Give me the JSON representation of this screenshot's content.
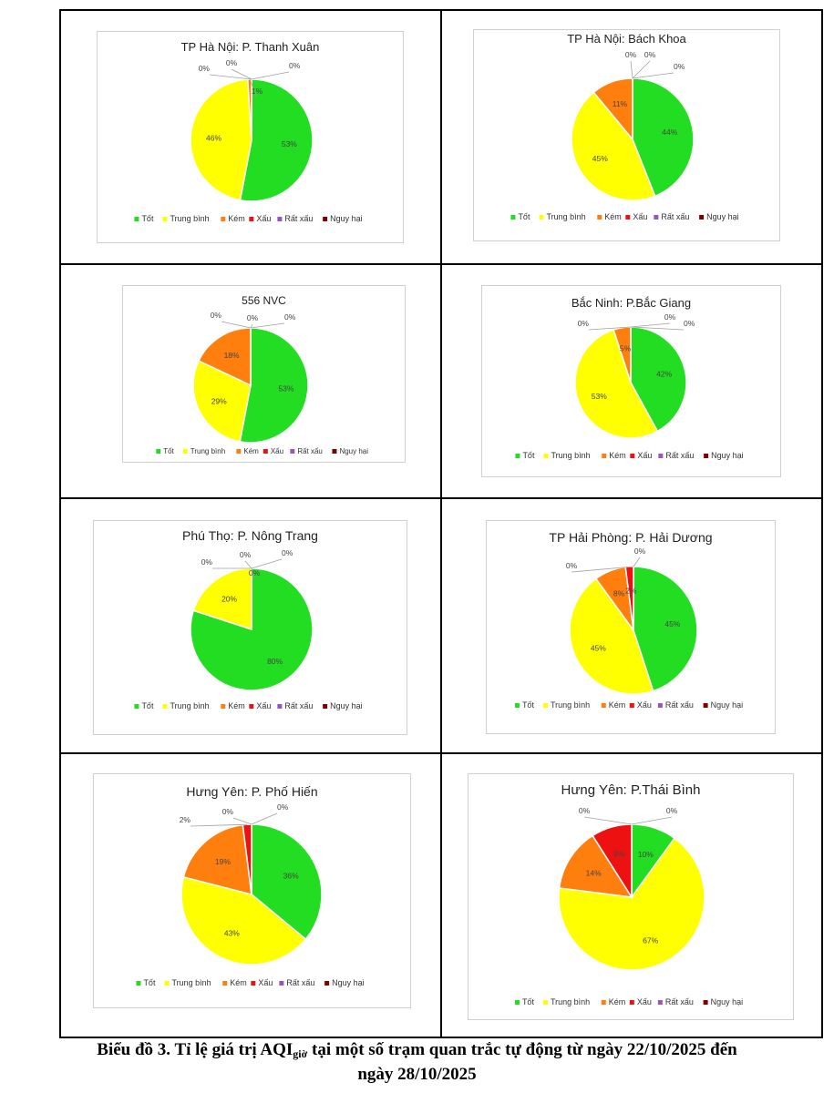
{
  "legend_labels": [
    "Tốt",
    "Trung bình",
    "Kém",
    "Xấu",
    "Rất xấu",
    "Nguy hại"
  ],
  "colors": [
    "#22dd22",
    "#ffff00",
    "#ff7f0e",
    "#ee1111",
    "#9955bb",
    "#800000"
  ],
  "caption": {
    "prefix": "Biểu đồ 3.  Tỉ lệ giá trị AQI",
    "sub": "giờ",
    "suffix": " tại một số trạm quan trắc tự động từ ngày 22/10/2025 đến",
    "line2": "ngày 28/10/2025"
  },
  "chart_data": [
    {
      "type": "pie",
      "title": "TP Hà Nội: P. Thanh Xuân",
      "categories": [
        "Tốt",
        "Trung bình",
        "Kém",
        "Xấu",
        "Rất xấu",
        "Nguy hại"
      ],
      "values": [
        53,
        46,
        1,
        0,
        0,
        0
      ],
      "labels": [
        "53%",
        "46%",
        "1%",
        "0%",
        "0%",
        "0%"
      ]
    },
    {
      "type": "pie",
      "title": "TP Hà Nội: Bách Khoa",
      "categories": [
        "Tốt",
        "Trung bình",
        "Kém",
        "Xấu",
        "Rất xấu",
        "Nguy hại"
      ],
      "values": [
        44,
        45,
        11,
        0,
        0,
        0
      ],
      "labels": [
        "44%",
        "45%",
        "11%",
        "0%",
        "0%",
        "0%"
      ]
    },
    {
      "type": "pie",
      "title": "556 NVC",
      "categories": [
        "Tốt",
        "Trung bình",
        "Kém",
        "Xấu",
        "Rất xấu",
        "Nguy hại"
      ],
      "values": [
        53,
        29,
        18,
        0,
        0,
        0
      ],
      "labels": [
        "53%",
        "29%",
        "18%",
        "0%",
        "0%",
        "0%"
      ]
    },
    {
      "type": "pie",
      "title": "Bắc Ninh: P.Bắc Giang",
      "categories": [
        "Tốt",
        "Trung bình",
        "Kém",
        "Xấu",
        "Rất xấu",
        "Nguy hại"
      ],
      "values": [
        42,
        53,
        5,
        0,
        0,
        0
      ],
      "labels": [
        "42%",
        "53%",
        "5%",
        "0%",
        "0%",
        "0%"
      ]
    },
    {
      "type": "pie",
      "title": "Phú Thọ: P. Nông Trang",
      "categories": [
        "Tốt",
        "Trung bình",
        "Kém",
        "Xấu",
        "Rất xấu",
        "Nguy hại"
      ],
      "values": [
        80,
        20,
        0,
        0,
        0,
        0
      ],
      "labels": [
        "80%",
        "20%",
        "0%",
        "0%",
        "0%",
        "0%"
      ]
    },
    {
      "type": "pie",
      "title": "TP Hải Phòng: P. Hải Dương",
      "categories": [
        "Tốt",
        "Trung bình",
        "Kém",
        "Xấu",
        "Rất xấu",
        "Nguy hại"
      ],
      "values": [
        45,
        45,
        8,
        2,
        0,
        0
      ],
      "labels": [
        "45%",
        "45%",
        "8%",
        "2%",
        "0%",
        "0%"
      ]
    },
    {
      "type": "pie",
      "title": "Hưng Yên: P. Phố Hiến",
      "categories": [
        "Tốt",
        "Trung bình",
        "Kém",
        "Xấu",
        "Rất xấu",
        "Nguy hại"
      ],
      "values": [
        36,
        43,
        19,
        2,
        0,
        0
      ],
      "labels": [
        "36%",
        "43%",
        "19%",
        "2%",
        "0%",
        "0%"
      ]
    },
    {
      "type": "pie",
      "title": "Hưng Yên: P.Thái Bình",
      "categories": [
        "Tốt",
        "Trung bình",
        "Kém",
        "Xấu",
        "Rất xấu",
        "Nguy hại"
      ],
      "values": [
        10,
        67,
        14,
        9,
        0,
        0
      ],
      "labels": [
        "10%",
        "67%",
        "14%",
        "9%",
        "0%",
        "0%"
      ]
    }
  ]
}
